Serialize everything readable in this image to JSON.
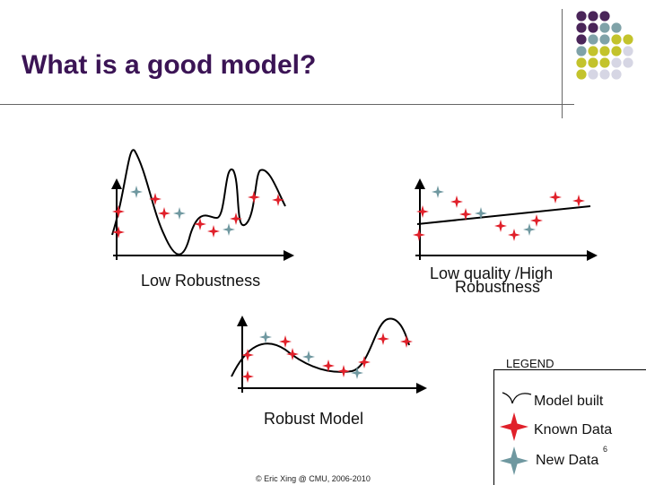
{
  "slide": {
    "title": "What is a good model?",
    "captions": {
      "low_robustness": "Low Robustness",
      "low_quality_line1": "Low quality  /High",
      "low_quality_line2": "Robustness",
      "robust_model": "Robust Model"
    },
    "legend": {
      "title": "LEGEND",
      "model_built": "Model built",
      "known_data": "Known Data",
      "new_data": "New Data"
    },
    "footer": "© Eric Xing @ CMU, 2006-2010",
    "page_number": "6"
  },
  "colors": {
    "title": "#3b1455",
    "known_data": "#e0202a",
    "new_data": "#6f98a0",
    "decor_purple": "#4a2559",
    "decor_teal": "#7fa2a8",
    "decor_olive": "#c3c32c",
    "decor_gray": "#d6d6e4"
  },
  "decor_grid": [
    [
      "decor_purple",
      "decor_purple",
      "decor_purple",
      "none",
      "none"
    ],
    [
      "decor_purple",
      "decor_purple",
      "decor_teal",
      "decor_teal",
      "none"
    ],
    [
      "decor_purple",
      "decor_teal",
      "decor_teal",
      "decor_olive",
      "decor_olive"
    ],
    [
      "decor_teal",
      "decor_olive",
      "decor_olive",
      "decor_olive",
      "decor_gray"
    ],
    [
      "decor_olive",
      "decor_olive",
      "decor_olive",
      "decor_gray",
      "decor_gray"
    ],
    [
      "decor_olive",
      "decor_gray",
      "decor_gray",
      "decor_gray",
      "none"
    ]
  ]
}
